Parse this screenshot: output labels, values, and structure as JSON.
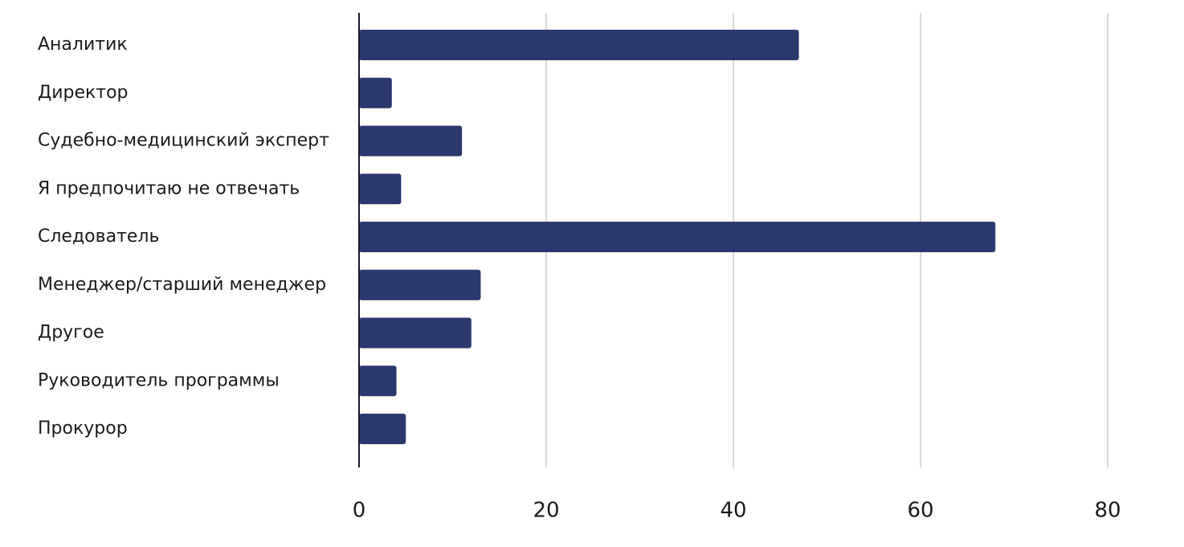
{
  "chart_data": {
    "type": "bar",
    "orientation": "horizontal",
    "categories": [
      "Аналитик",
      "Директор",
      "Судебно-медицинский эксперт",
      "Я предпочитаю не отвечать",
      "Следователь",
      "Менеджер/старший менеджер",
      "Другое",
      "Руководитель программы",
      "Прокурор"
    ],
    "values": [
      47,
      3.5,
      11,
      4.5,
      68,
      13,
      12,
      4,
      5
    ],
    "xlim": [
      0,
      80
    ],
    "xticks": [
      "0",
      "20",
      "40",
      "60",
      "80"
    ],
    "grid": true,
    "bar_color": "#2b3a6e",
    "title": "",
    "xlabel": "",
    "ylabel": ""
  }
}
